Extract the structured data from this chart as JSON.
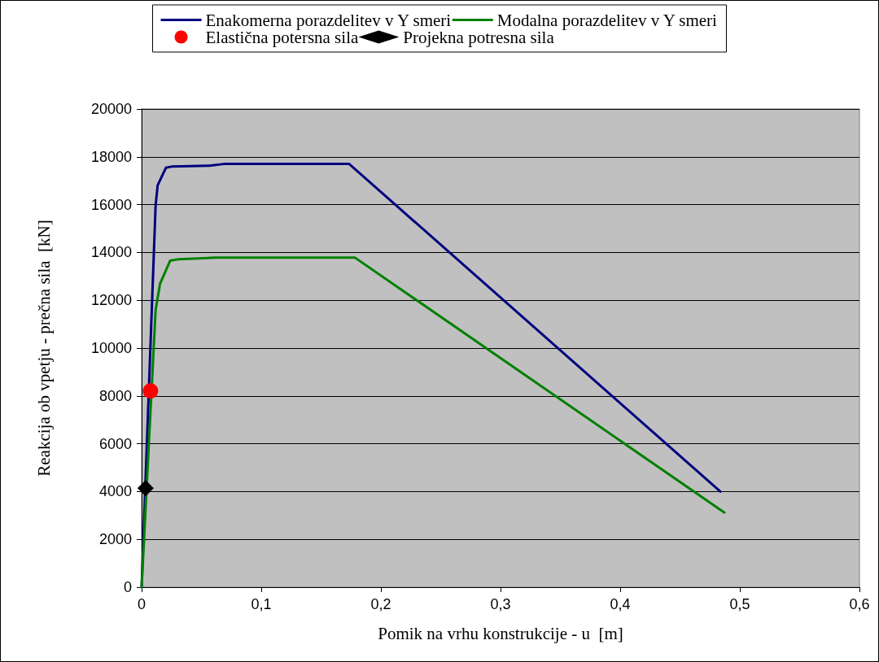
{
  "chart_data": {
    "type": "line",
    "xlabel": "Pomik na vrhu konstrukcije - u  [m]",
    "ylabel": "Reakcija ob vpetju - prečna sila  [kN]",
    "xlim": [
      0,
      0.6
    ],
    "xticks": [
      0,
      {
        "value": 0.1,
        "label": "0,1"
      },
      {
        "value": 0.2,
        "label": "0,2"
      },
      {
        "value": 0.3,
        "label": "0,3"
      },
      {
        "value": 0.4,
        "label": "0,4"
      },
      {
        "value": 0.5,
        "label": "0,5"
      },
      {
        "value": 0.6,
        "label": "0,6"
      }
    ],
    "ylim": [
      0,
      20000
    ],
    "yticks": [
      0,
      2000,
      4000,
      6000,
      8000,
      10000,
      12000,
      14000,
      16000,
      18000,
      20000
    ],
    "grid": "y",
    "legend": "top",
    "marker": "none",
    "line_style": "solid",
    "series": [
      {
        "name": "Enakomerna porazdelitev v Y smeri",
        "color": "#000080",
        "x": [
          0,
          0.0117,
          0.0134,
          0.0203,
          0.025,
          0.0566,
          0.0687,
          0.1735,
          0.4837
        ],
        "values": [
          0,
          15970,
          16810,
          17540,
          17590,
          17630,
          17700,
          17700,
          4000
        ]
      },
      {
        "name": "Modalna porazdelitev v Y smeri",
        "color": "#008000",
        "x": [
          0,
          0.0117,
          0.0154,
          0.0239,
          0.0312,
          0.0616,
          0.1784,
          0.4871
        ],
        "values": [
          0,
          11600,
          12690,
          13660,
          13720,
          13780,
          13780,
          3120
        ]
      },
      {
        "name": "Elastična potersna sila",
        "type": "scatter",
        "marker": "circle",
        "color": "#ff0000",
        "x": [
          0.0074
        ],
        "values": [
          8210
        ]
      },
      {
        "name": "Projekna potresna sila",
        "type": "scatter",
        "marker": "diamond",
        "color": "#000000",
        "x": [
          0.0033
        ],
        "values": [
          4140
        ]
      }
    ]
  }
}
